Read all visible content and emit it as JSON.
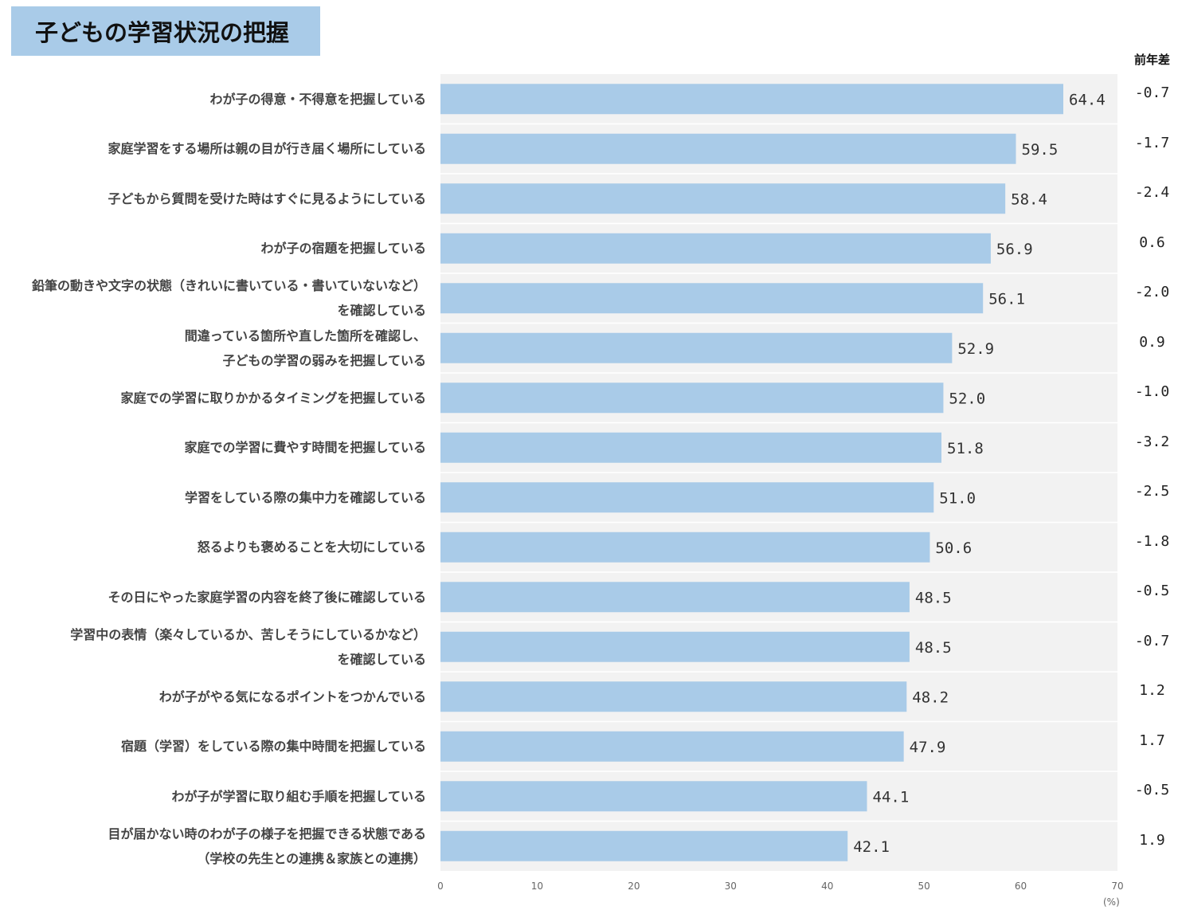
{
  "title": "子どもの学習状況の把握",
  "diff_header": "前年差",
  "unit": "(%)",
  "colors": {
    "bar": "#a9cbe8",
    "plot_bg": "#f2f2f2",
    "title_bg": "#a9cbe8",
    "gridline": "#ffffff"
  },
  "chart_data": {
    "type": "bar",
    "orientation": "horizontal",
    "categories": [
      [
        "わが子の得意・不得意を把握している"
      ],
      [
        "家庭学習をする場所は親の目が行き届く場所にしている"
      ],
      [
        "子どもから質問を受けた時はすぐに見るようにしている"
      ],
      [
        "わが子の宿題を把握している"
      ],
      [
        "鉛筆の動きや文字の状態（きれいに書いている・書いていないなど）",
        "を確認している"
      ],
      [
        "間違っている箇所や直した箇所を確認し、",
        "子どもの学習の弱みを把握している"
      ],
      [
        "家庭での学習に取りかかるタイミングを把握している"
      ],
      [
        "家庭での学習に費やす時間を把握している"
      ],
      [
        "学習をしている際の集中力を確認している"
      ],
      [
        "怒るよりも褒めることを大切にしている"
      ],
      [
        "その日にやった家庭学習の内容を終了後に確認している"
      ],
      [
        "学習中の表情（楽々しているか、苦しそうにしているかなど）",
        "を確認している"
      ],
      [
        "わが子がやる気になるポイントをつかんでいる"
      ],
      [
        "宿題（学習）をしている際の集中時間を把握している"
      ],
      [
        "わが子が学習に取り組む手順を把握している"
      ],
      [
        "目が届かない時のわが子の様子を把握できる状態である",
        "（学校の先生との連携＆家族との連携）"
      ]
    ],
    "values": [
      64.4,
      59.5,
      58.4,
      56.9,
      56.1,
      52.9,
      52.0,
      51.8,
      51.0,
      50.6,
      48.5,
      48.5,
      48.2,
      47.9,
      44.1,
      42.1
    ],
    "value_labels": [
      "64.4",
      "59.5",
      "58.4",
      "56.9",
      "56.1",
      "52.9",
      "52.0",
      "51.8",
      "51.0",
      "50.6",
      "48.5",
      "48.5",
      "48.2",
      "47.9",
      "44.1",
      "42.1"
    ],
    "diff_labels": [
      "-0.7",
      "-1.7",
      "-2.4",
      "0.6",
      "-2.0",
      "0.9",
      "-1.0",
      "-3.2",
      "-2.5",
      "-1.8",
      "-0.5",
      "-0.7",
      "1.2",
      "1.7",
      "-0.5",
      "1.9"
    ],
    "xlim": [
      0,
      70
    ],
    "xticks": [
      "0",
      "10",
      "20",
      "30",
      "40",
      "50",
      "60",
      "70"
    ],
    "xlabel": "(%)",
    "grid": "horizontal separators",
    "legend": "none"
  }
}
